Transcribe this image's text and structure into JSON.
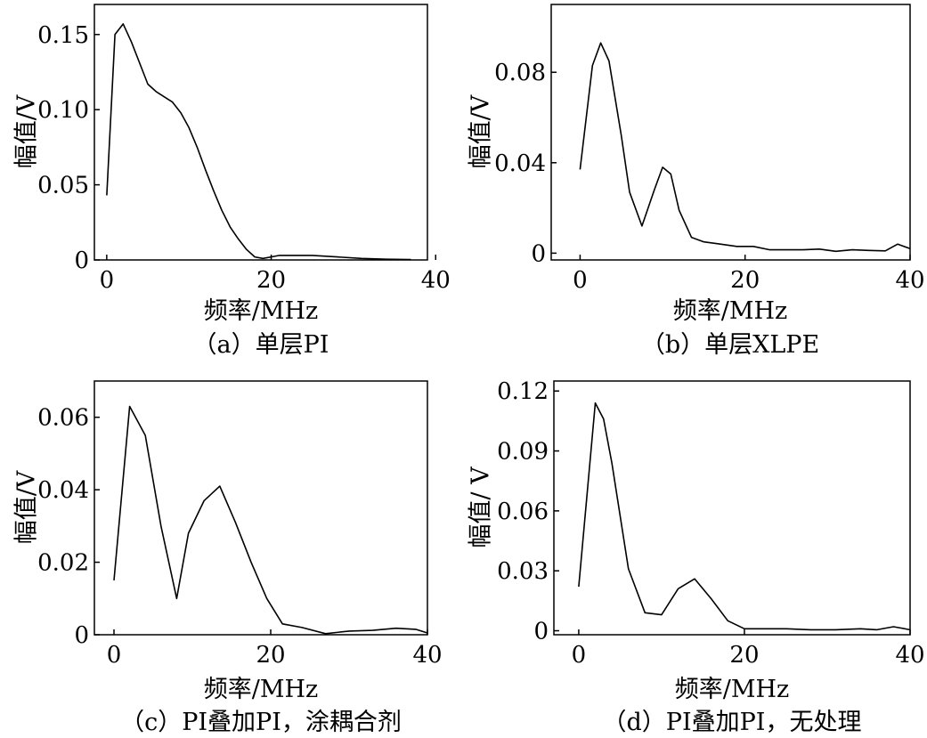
{
  "chart_data": [
    {
      "id": "a",
      "type": "line",
      "caption": "（a）单层PI",
      "xlabel": "频率/MHz",
      "ylabel": "幅值/V",
      "xlim": [
        -1.5,
        39
      ],
      "ylim": [
        0,
        0.17
      ],
      "xticks": [
        0,
        20,
        40
      ],
      "xtick_labels": [
        "0",
        "20",
        "40"
      ],
      "yticks": [
        0,
        0.05,
        0.1,
        0.15
      ],
      "ytick_labels": [
        "0",
        "0.05",
        "0.10",
        "0.15"
      ],
      "series": [
        {
          "x": [
            0,
            1,
            2,
            3,
            5,
            6,
            8,
            9,
            10,
            11,
            12,
            13,
            14,
            15,
            16,
            17,
            18,
            19,
            20,
            21,
            22,
            25,
            28,
            31,
            34,
            37
          ],
          "y": [
            0.043,
            0.15,
            0.157,
            0.145,
            0.117,
            0.112,
            0.105,
            0.098,
            0.088,
            0.075,
            0.06,
            0.046,
            0.033,
            0.022,
            0.014,
            0.007,
            0.002,
            0.001,
            0.002,
            0.003,
            0.003,
            0.003,
            0.002,
            0.001,
            0.0005,
            0.0003
          ]
        }
      ]
    },
    {
      "id": "b",
      "type": "line",
      "caption": "（b）单层XLPE",
      "xlabel": "频率/MHz",
      "ylabel": "幅值/V",
      "xlim": [
        -3.5,
        40
      ],
      "ylim": [
        -0.003,
        0.11
      ],
      "xticks": [
        0,
        20,
        40
      ],
      "xtick_labels": [
        "0",
        "20",
        "40"
      ],
      "yticks": [
        0,
        0.04,
        0.08
      ],
      "ytick_labels": [
        "0",
        "0.04",
        "0.08"
      ],
      "series": [
        {
          "x": [
            0,
            1.5,
            2.5,
            3.5,
            5,
            6,
            7.5,
            9,
            10,
            11,
            12,
            13.5,
            15,
            17,
            19,
            21,
            23,
            25,
            27,
            29,
            31,
            33,
            35,
            37,
            38.5,
            40
          ],
          "y": [
            0.037,
            0.083,
            0.093,
            0.085,
            0.052,
            0.027,
            0.012,
            0.028,
            0.038,
            0.035,
            0.019,
            0.007,
            0.005,
            0.004,
            0.003,
            0.003,
            0.0015,
            0.0015,
            0.0015,
            0.0018,
            0.0008,
            0.0015,
            0.0012,
            0.001,
            0.004,
            0.002
          ]
        }
      ]
    },
    {
      "id": "c",
      "type": "line",
      "caption": "（c）PI叠加PI，涂耦合剂",
      "xlabel": "频率/MHz",
      "ylabel": "幅值/V",
      "xlim": [
        -2.5,
        40
      ],
      "ylim": [
        0,
        0.07
      ],
      "xticks": [
        0,
        20,
        40
      ],
      "xtick_labels": [
        "0",
        "20",
        "40"
      ],
      "yticks": [
        0,
        0.02,
        0.04,
        0.06
      ],
      "ytick_labels": [
        "0",
        "0.02",
        "0.04",
        "0.06"
      ],
      "series": [
        {
          "x": [
            0,
            2,
            4,
            6,
            8,
            9.5,
            11.5,
            13.5,
            15.5,
            17.5,
            19.5,
            21.5,
            24,
            27,
            30,
            33,
            36,
            38.5,
            40
          ],
          "y": [
            0.015,
            0.063,
            0.055,
            0.03,
            0.01,
            0.028,
            0.037,
            0.041,
            0.031,
            0.02,
            0.01,
            0.003,
            0.002,
            0.0003,
            0.001,
            0.0012,
            0.0018,
            0.0015,
            0.0005
          ]
        }
      ]
    },
    {
      "id": "d",
      "type": "line",
      "caption": "（d）PI叠加PI，无处理",
      "xlabel": "频率/MHz",
      "ylabel": "幅值/ V",
      "xlim": [
        -3,
        40
      ],
      "ylim": [
        -0.002,
        0.125
      ],
      "xticks": [
        0,
        20,
        40
      ],
      "xtick_labels": [
        "0",
        "20",
        "40"
      ],
      "yticks": [
        0,
        0.03,
        0.06,
        0.09,
        0.12
      ],
      "ytick_labels": [
        "0",
        "0.03",
        "0.06",
        "0.09",
        "0.12"
      ],
      "series": [
        {
          "x": [
            0,
            2,
            3,
            4,
            6,
            8,
            10,
            12,
            14,
            16,
            18,
            20,
            22,
            25,
            28,
            31,
            34,
            36,
            38,
            40
          ],
          "y": [
            0.022,
            0.114,
            0.106,
            0.084,
            0.031,
            0.009,
            0.008,
            0.021,
            0.026,
            0.016,
            0.005,
            0.001,
            0.001,
            0.001,
            0.0005,
            0.0005,
            0.001,
            0.0005,
            0.002,
            0.0005
          ]
        }
      ]
    }
  ]
}
